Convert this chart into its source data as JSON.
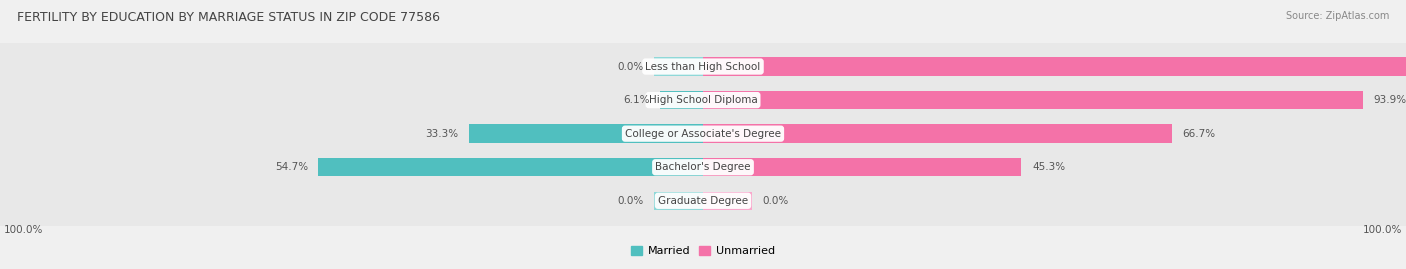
{
  "title": "FERTILITY BY EDUCATION BY MARRIAGE STATUS IN ZIP CODE 77586",
  "source": "Source: ZipAtlas.com",
  "categories": [
    "Less than High School",
    "High School Diploma",
    "College or Associate's Degree",
    "Bachelor's Degree",
    "Graduate Degree"
  ],
  "married": [
    0.0,
    6.1,
    33.3,
    54.7,
    0.0
  ],
  "unmarried": [
    100.0,
    93.9,
    66.7,
    45.3,
    0.0
  ],
  "married_color": "#50BFBF",
  "unmarried_color": "#F472A8",
  "married_color_light": "#8FD8D8",
  "unmarried_color_light": "#F9A8CC",
  "background_color": "#f0f0f0",
  "row_bg_color": "#e8e8e8",
  "row_sep_color": "#ffffff",
  "title_color": "#444444",
  "source_color": "#888888",
  "value_color": "#555555",
  "label_color": "#444444",
  "min_stub": 7.0,
  "total_width": 100,
  "bar_height": 0.7
}
